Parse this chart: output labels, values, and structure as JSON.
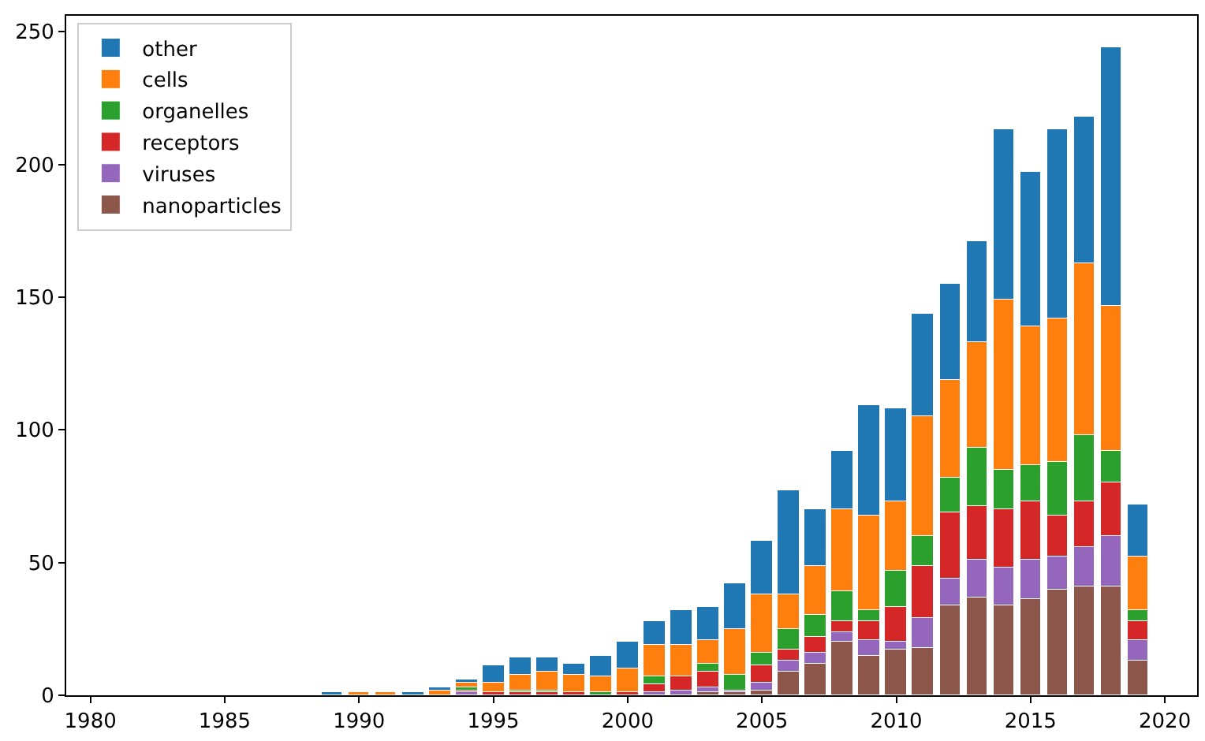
{
  "chart_data": {
    "type": "bar",
    "stacked": true,
    "legend": "top left",
    "x": [
      1989,
      1990,
      1991,
      1992,
      1993,
      1994,
      1995,
      1996,
      1997,
      1998,
      1999,
      2000,
      2001,
      2002,
      2003,
      2004,
      2005,
      2006,
      2007,
      2008,
      2009,
      2010,
      2011,
      2012,
      2013,
      2014,
      2015,
      2016,
      2017,
      2018,
      2019
    ],
    "xlim": [
      1979.1,
      2021.2
    ],
    "xticks": [
      1980,
      1985,
      1990,
      1995,
      2000,
      2005,
      2010,
      2015,
      2020
    ],
    "ylim": [
      0,
      256
    ],
    "yticks": [
      0,
      50,
      100,
      150,
      200,
      250
    ],
    "series": [
      {
        "name": "nanoparticles",
        "color": "#8c564b",
        "values": [
          null,
          null,
          null,
          null,
          null,
          null,
          null,
          null,
          null,
          null,
          null,
          null,
          null,
          null,
          1,
          1,
          2,
          9,
          12,
          20,
          15,
          17,
          18,
          34,
          37,
          34,
          36,
          40,
          41,
          41,
          13
        ]
      },
      {
        "name": "viruses",
        "color": "#9467bd",
        "values": [
          null,
          null,
          null,
          null,
          null,
          1,
          null,
          null,
          null,
          null,
          null,
          null,
          1,
          2,
          2,
          1,
          3,
          4,
          4,
          4,
          6,
          3,
          11,
          10,
          14,
          14,
          15,
          12,
          15,
          19,
          8
        ]
      },
      {
        "name": "receptors",
        "color": "#d62728",
        "values": [
          null,
          null,
          null,
          null,
          null,
          1,
          1,
          1,
          1,
          1,
          null,
          1,
          3,
          5,
          6,
          null,
          6,
          4,
          6,
          4,
          7,
          13,
          20,
          25,
          20,
          22,
          22,
          16,
          17,
          20,
          7
        ]
      },
      {
        "name": "organelles",
        "color": "#2ca02c",
        "values": [
          null,
          null,
          null,
          null,
          null,
          1,
          null,
          1,
          1,
          null,
          1,
          null,
          3,
          null,
          3,
          6,
          5,
          8,
          8,
          11,
          4,
          14,
          11,
          13,
          22,
          15,
          14,
          20,
          25,
          12,
          4
        ]
      },
      {
        "name": "cells",
        "color": "#ff7f0e",
        "values": [
          null,
          1,
          1,
          null,
          2,
          2,
          4,
          6,
          7,
          7,
          6,
          9,
          12,
          12,
          9,
          17,
          22,
          13,
          19,
          31,
          36,
          26,
          45,
          37,
          40,
          64,
          52,
          54,
          65,
          55,
          20
        ]
      },
      {
        "name": "other",
        "color": "#1f77b4",
        "values": [
          1,
          null,
          null,
          1,
          1,
          1,
          6,
          6,
          5,
          4,
          8,
          10,
          9,
          13,
          12,
          17,
          20,
          39,
          21,
          22,
          41,
          35,
          39,
          36,
          38,
          64,
          58,
          71,
          55,
          97,
          20
        ]
      }
    ]
  }
}
